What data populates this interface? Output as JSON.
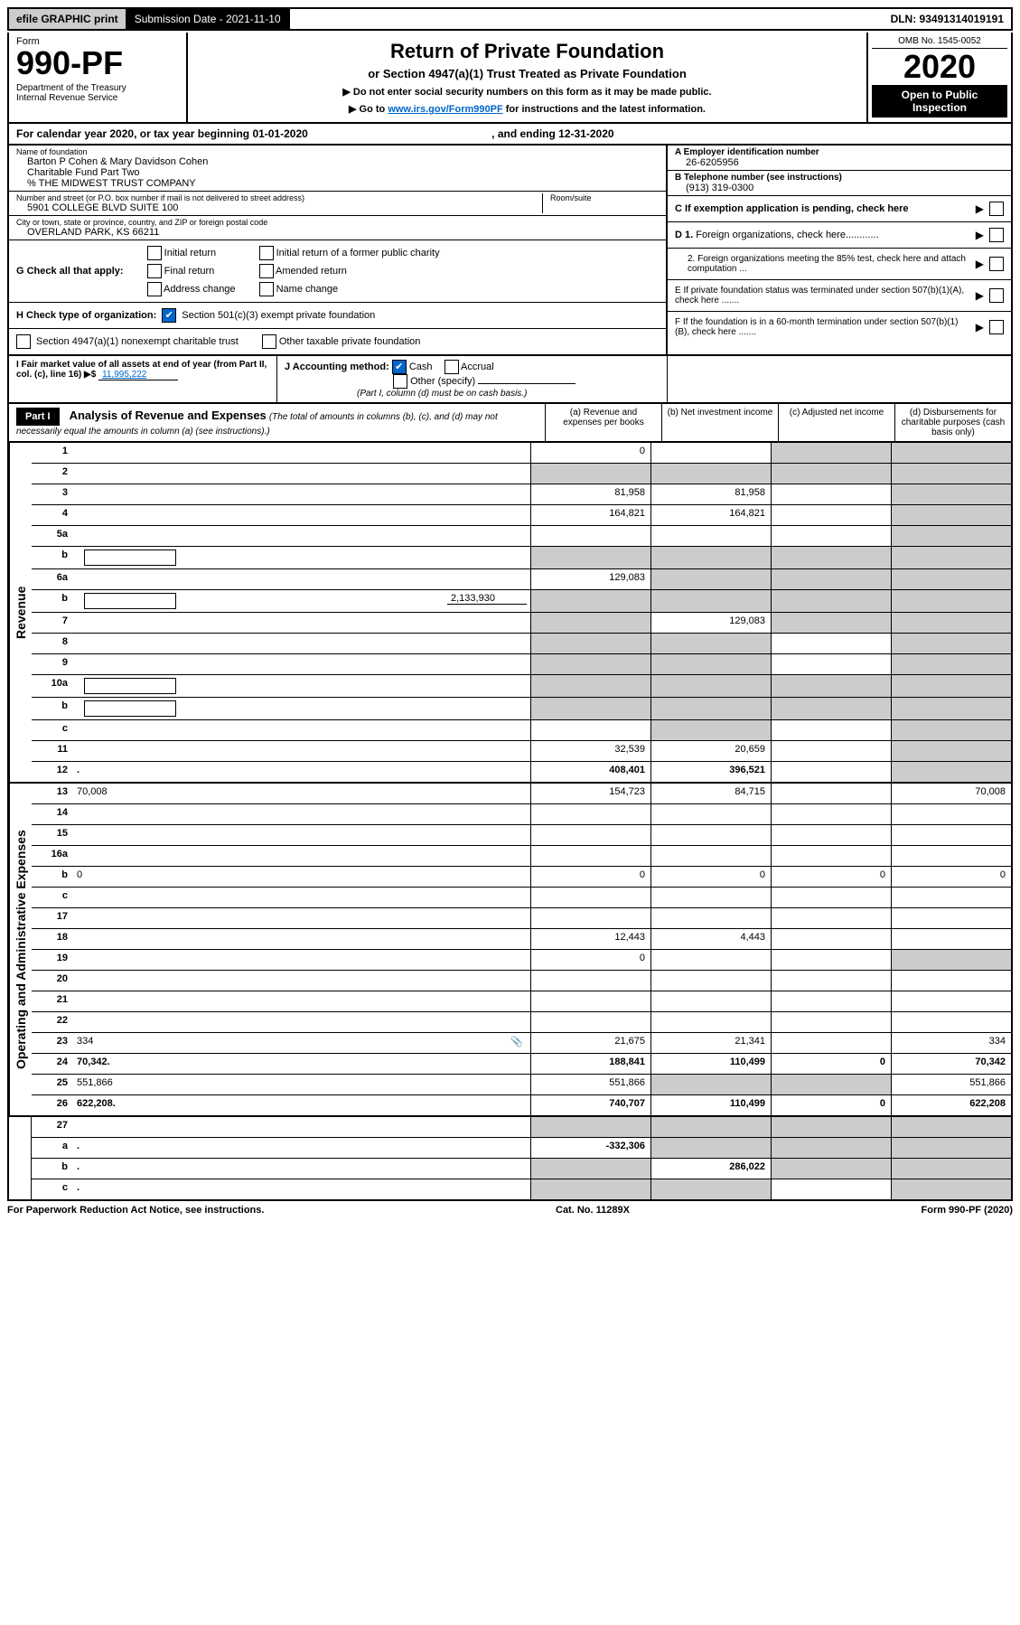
{
  "top_bar": {
    "efile": "efile GRAPHIC print",
    "submission": "Submission Date - 2021-11-10",
    "dln": "DLN: 93491314019191"
  },
  "header": {
    "form_label": "Form",
    "form_num": "990-PF",
    "dept": "Department of the Treasury\nInternal Revenue Service",
    "title": "Return of Private Foundation",
    "subtitle": "or Section 4947(a)(1) Trust Treated as Private Foundation",
    "inst1": "▶ Do not enter social security numbers on this form as it may be made public.",
    "inst2_pre": "▶ Go to ",
    "inst2_link": "www.irs.gov/Form990PF",
    "inst2_post": " for instructions and the latest information.",
    "omb": "OMB No. 1545-0052",
    "year": "2020",
    "open": "Open to Public Inspection"
  },
  "calyear": "For calendar year 2020, or tax year beginning 01-01-2020",
  "calyear_end": ", and ending 12-31-2020",
  "entity": {
    "name_label": "Name of foundation",
    "name": "Barton P Cohen & Mary Davidson Cohen\nCharitable Fund Part Two\n% THE MIDWEST TRUST COMPANY",
    "addr_label": "Number and street (or P.O. box number if mail is not delivered to street address)",
    "addr": "5901 COLLEGE BLVD SUITE 100",
    "room_label": "Room/suite",
    "city_label": "City or town, state or province, country, and ZIP or foreign postal code",
    "city": "OVERLAND PARK, KS  66211",
    "a_label": "A Employer identification number",
    "ein": "26-6205956",
    "b_label": "B Telephone number (see instructions)",
    "phone": "(913) 319-0300",
    "c_label": "C If exemption application is pending, check here",
    "d1": "D 1. Foreign organizations, check here............",
    "d2": "2. Foreign organizations meeting the 85% test, check here and attach computation ...",
    "e_label": "E  If private foundation status was terminated under section 507(b)(1)(A), check here .......",
    "f_label": "F  If the foundation is in a 60-month termination under section 507(b)(1)(B), check here ......."
  },
  "g": {
    "label": "G Check all that apply:",
    "opts": [
      "Initial return",
      "Final return",
      "Address change",
      "Initial return of a former public charity",
      "Amended return",
      "Name change"
    ]
  },
  "h": {
    "label": "H Check type of organization:",
    "opt1": "Section 501(c)(3) exempt private foundation",
    "opt2": "Section 4947(a)(1) nonexempt charitable trust",
    "opt3": "Other taxable private foundation"
  },
  "i": {
    "label": "I Fair market value of all assets at end of year (from Part II, col. (c), line 16) ▶$",
    "val": "11,995,222"
  },
  "j": {
    "label": "J Accounting method:",
    "cash": "Cash",
    "accrual": "Accrual",
    "other": "Other (specify)",
    "note": "(Part I, column (d) must be on cash basis.)"
  },
  "part1": {
    "label": "Part I",
    "title": "Analysis of Revenue and Expenses",
    "desc": "(The total of amounts in columns (b), (c), and (d) may not necessarily equal the amounts in column (a) (see instructions).)",
    "col_a": "(a)  Revenue and expenses per books",
    "col_b": "(b)  Net investment income",
    "col_c": "(c)  Adjusted net income",
    "col_d": "(d)  Disbursements for charitable purposes (cash basis only)"
  },
  "vert": {
    "revenue": "Revenue",
    "expenses": "Operating and Administrative Expenses"
  },
  "lines": [
    {
      "n": "1",
      "d": "",
      "a": "0",
      "b": "",
      "c": "",
      "shade_c": true,
      "shade_d": true
    },
    {
      "n": "2",
      "d": "",
      "a": "",
      "b": "",
      "c": "",
      "shade_a": true,
      "shade_b": true,
      "shade_c": true,
      "shade_d": true
    },
    {
      "n": "3",
      "d": "",
      "a": "81,958",
      "b": "81,958",
      "c": "",
      "shade_d": true
    },
    {
      "n": "4",
      "d": "",
      "a": "164,821",
      "b": "164,821",
      "c": "",
      "shade_d": true
    },
    {
      "n": "5a",
      "d": "",
      "a": "",
      "b": "",
      "c": "",
      "shade_d": true
    },
    {
      "n": "b",
      "d": "",
      "a": "",
      "b": "",
      "c": "",
      "shade_a": true,
      "shade_b": true,
      "shade_c": true,
      "shade_d": true,
      "inset": true
    },
    {
      "n": "6a",
      "d": "",
      "a": "129,083",
      "b": "",
      "c": "",
      "shade_b": true,
      "shade_c": true,
      "shade_d": true
    },
    {
      "n": "b",
      "d": "",
      "a": "",
      "b": "",
      "c": "",
      "shade_a": true,
      "shade_b": true,
      "shade_c": true,
      "shade_d": true,
      "inset": true,
      "fillval": "2,133,930"
    },
    {
      "n": "7",
      "d": "",
      "a": "",
      "b": "129,083",
      "c": "",
      "shade_a": true,
      "shade_c": true,
      "shade_d": true
    },
    {
      "n": "8",
      "d": "",
      "a": "",
      "b": "",
      "c": "",
      "shade_a": true,
      "shade_b": true,
      "shade_d": true
    },
    {
      "n": "9",
      "d": "",
      "a": "",
      "b": "",
      "c": "",
      "shade_a": true,
      "shade_b": true,
      "shade_d": true
    },
    {
      "n": "10a",
      "d": "",
      "a": "",
      "b": "",
      "c": "",
      "shade_a": true,
      "shade_b": true,
      "shade_c": true,
      "shade_d": true,
      "inset": true
    },
    {
      "n": "b",
      "d": "",
      "a": "",
      "b": "",
      "c": "",
      "shade_a": true,
      "shade_b": true,
      "shade_c": true,
      "shade_d": true,
      "inset": true
    },
    {
      "n": "c",
      "d": "",
      "a": "",
      "b": "",
      "c": "",
      "shade_b": true,
      "shade_d": true
    },
    {
      "n": "11",
      "d": "",
      "a": "32,539",
      "b": "20,659",
      "c": "",
      "shade_d": true
    },
    {
      "n": "12",
      "d": "",
      "a": "408,401",
      "b": "396,521",
      "c": "",
      "bold": true,
      "shade_d": true
    }
  ],
  "lines2": [
    {
      "n": "13",
      "d": "70,008",
      "a": "154,723",
      "b": "84,715",
      "c": ""
    },
    {
      "n": "14",
      "d": "",
      "a": "",
      "b": "",
      "c": ""
    },
    {
      "n": "15",
      "d": "",
      "a": "",
      "b": "",
      "c": ""
    },
    {
      "n": "16a",
      "d": "",
      "a": "",
      "b": "",
      "c": ""
    },
    {
      "n": "b",
      "d": "0",
      "a": "0",
      "b": "0",
      "c": "0"
    },
    {
      "n": "c",
      "d": "",
      "a": "",
      "b": "",
      "c": ""
    },
    {
      "n": "17",
      "d": "",
      "a": "",
      "b": "",
      "c": ""
    },
    {
      "n": "18",
      "d": "",
      "a": "12,443",
      "b": "4,443",
      "c": ""
    },
    {
      "n": "19",
      "d": "",
      "a": "0",
      "b": "",
      "c": "",
      "shade_d": true
    },
    {
      "n": "20",
      "d": "",
      "a": "",
      "b": "",
      "c": ""
    },
    {
      "n": "21",
      "d": "",
      "a": "",
      "b": "",
      "c": ""
    },
    {
      "n": "22",
      "d": "",
      "a": "",
      "b": "",
      "c": ""
    },
    {
      "n": "23",
      "d": "334",
      "a": "21,675",
      "b": "21,341",
      "c": "",
      "icon": true
    },
    {
      "n": "24",
      "d": "70,342",
      "a": "188,841",
      "b": "110,499",
      "c": "0",
      "bold": true
    },
    {
      "n": "25",
      "d": "551,866",
      "a": "551,866",
      "b": "",
      "c": "",
      "shade_b": true,
      "shade_c": true
    },
    {
      "n": "26",
      "d": "622,208",
      "a": "740,707",
      "b": "110,499",
      "c": "0",
      "bold": true
    }
  ],
  "lines3": [
    {
      "n": "27",
      "d": "",
      "a": "",
      "b": "",
      "c": "",
      "shade_a": true,
      "shade_b": true,
      "shade_c": true,
      "shade_d": true
    },
    {
      "n": "a",
      "d": "",
      "a": "-332,306",
      "b": "",
      "c": "",
      "bold": true,
      "shade_b": true,
      "shade_c": true,
      "shade_d": true
    },
    {
      "n": "b",
      "d": "",
      "a": "",
      "b": "286,022",
      "c": "",
      "bold": true,
      "shade_a": true,
      "shade_c": true,
      "shade_d": true
    },
    {
      "n": "c",
      "d": "",
      "a": "",
      "b": "",
      "c": "",
      "bold": true,
      "shade_a": true,
      "shade_b": true,
      "shade_d": true
    }
  ],
  "footer": {
    "left": "For Paperwork Reduction Act Notice, see instructions.",
    "center": "Cat. No. 11289X",
    "right": "Form 990-PF (2020)"
  }
}
